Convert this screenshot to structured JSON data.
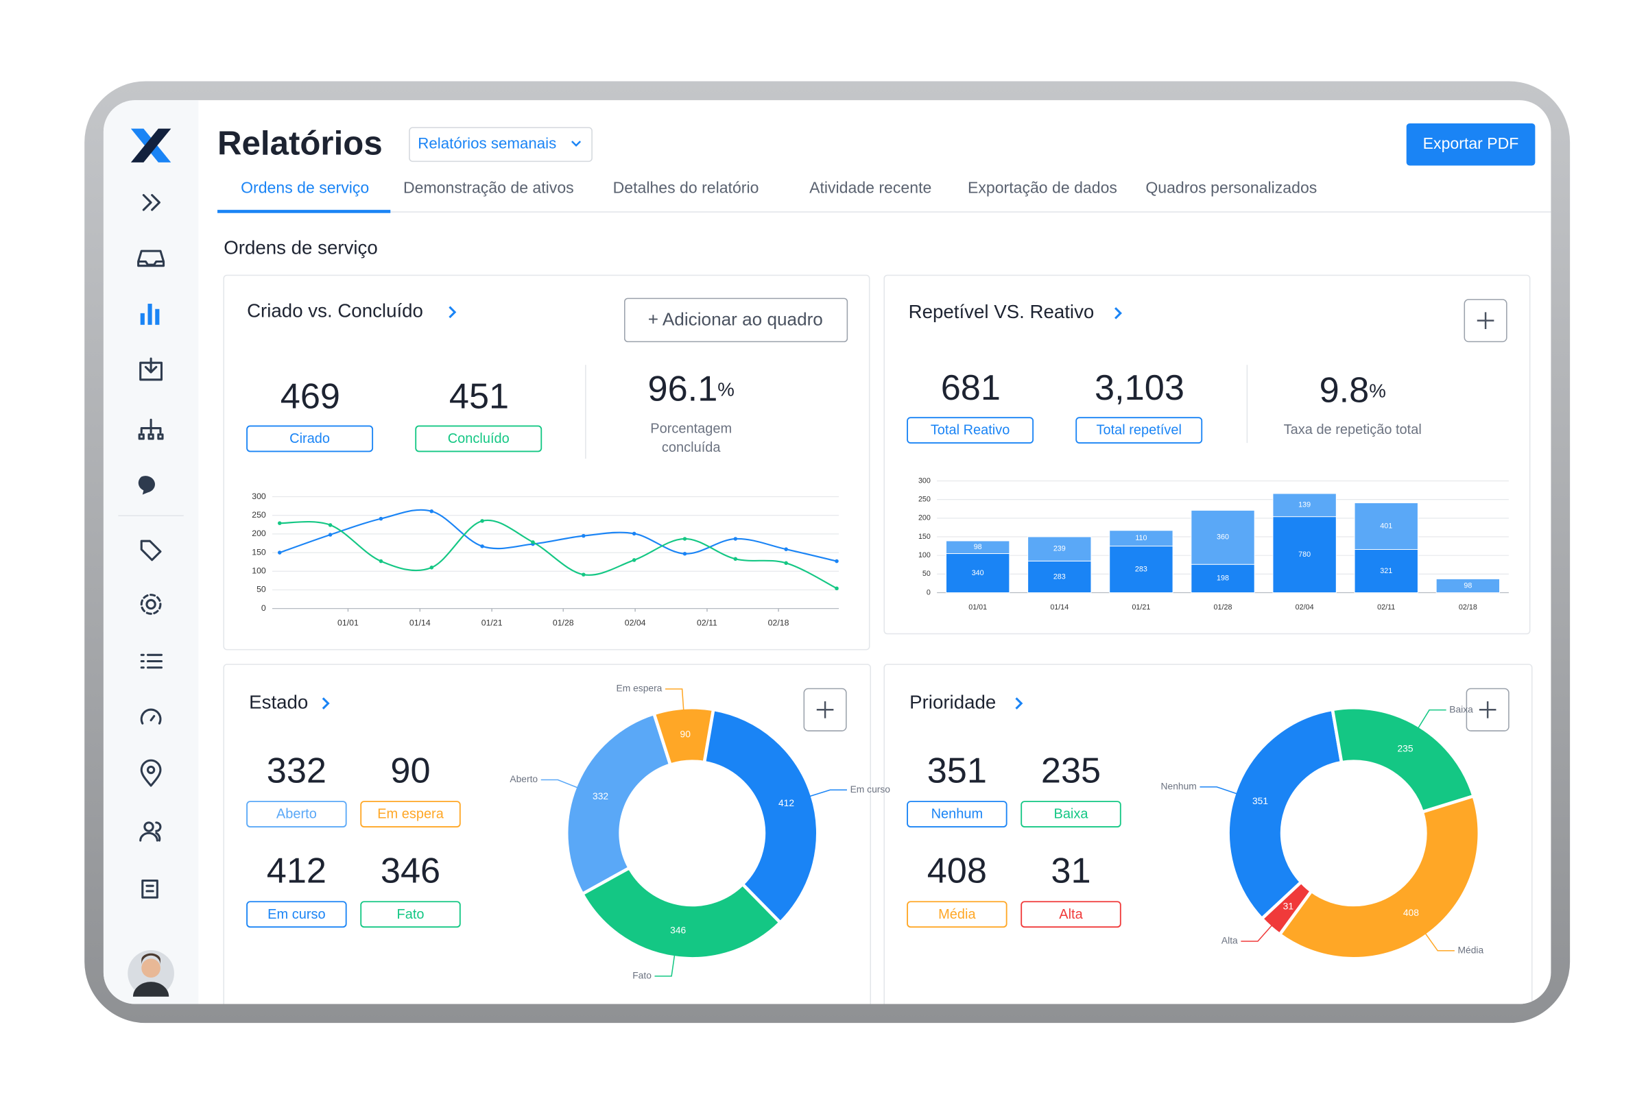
{
  "header": {
    "title": "Relatórios",
    "dropdown": "Relatórios semanais",
    "export_button": "Exportar PDF"
  },
  "tabs": [
    "Ordens de serviço",
    "Demonstração de ativos",
    "Detalhes do relatório",
    "Atividade recente",
    "Exportação de dados",
    "Quadros personalizados"
  ],
  "section_title": "Ordens de serviço",
  "chart_data": [
    {
      "type": "line",
      "title": "Criado vs. Concluído",
      "add_button": "+ Adicionar ao quadro",
      "rate": {
        "value": "96.1",
        "unit": "%",
        "caption": [
          "Porcentagem",
          "concluída"
        ]
      },
      "x": [
        0,
        1,
        2,
        3,
        4,
        5,
        6,
        7,
        8,
        9,
        10,
        11
      ],
      "xlim": [
        0,
        11
      ],
      "xticks": [
        {
          "value": 1.35,
          "label": "01/01"
        },
        {
          "value": 2.77,
          "label": "01/14"
        },
        {
          "value": 4.19,
          "label": "01/21"
        },
        {
          "value": 5.6,
          "label": "01/28"
        },
        {
          "value": 7.02,
          "label": "02/04"
        },
        {
          "value": 8.44,
          "label": "02/11"
        },
        {
          "value": 9.85,
          "label": "02/18"
        }
      ],
      "ylim": [
        0,
        300
      ],
      "yticks": [
        0,
        50,
        100,
        150,
        200,
        250,
        300
      ],
      "grid": true,
      "series": [
        {
          "name": "Cirado",
          "total": "469",
          "color": "#1a84f5",
          "values": [
            150,
            198,
            241,
            261,
            167,
            173,
            195,
            201,
            147,
            187,
            159,
            127
          ]
        },
        {
          "name": "Concluído",
          "total": "451",
          "color": "#14c784",
          "values": [
            229,
            224,
            127,
            110,
            235,
            178,
            91,
            130,
            187,
            133,
            122,
            54
          ]
        }
      ]
    },
    {
      "type": "bar",
      "stacked": true,
      "title": "Repetível VS. Reativo",
      "rate": {
        "value": "9.8",
        "unit": "%",
        "caption": [
          "Taxa de repetição total"
        ]
      },
      "categories": [
        "01/01",
        "01/14",
        "01/21",
        "01/28",
        "02/04",
        "02/11",
        "02/18"
      ],
      "ylim": [
        0,
        300
      ],
      "yticks": [
        0,
        50,
        100,
        150,
        200,
        250,
        300
      ],
      "grid": true,
      "series": [
        {
          "name": "Total Reativo",
          "total": "681",
          "color": "#1a84f5",
          "values": [
            105,
            85,
            125,
            76,
            204,
            116,
            null
          ],
          "annotations": [
            "340",
            "283",
            "283",
            "198",
            "780",
            "321",
            null
          ]
        },
        {
          "name": "Total repetível",
          "total": "3,103",
          "color": "#5aa8f7",
          "values": [
            34,
            65,
            42,
            145,
            62,
            125,
            37
          ],
          "annotations": [
            "98",
            "239",
            "110",
            "360",
            "139",
            "401",
            "98"
          ]
        }
      ]
    },
    {
      "type": "pie",
      "donut": true,
      "title": "Estado",
      "categories": [
        "Aberto",
        "Em espera",
        "Em curso",
        "Fato"
      ],
      "values": [
        332,
        90,
        412,
        346
      ],
      "colors": [
        "#5aa8f7",
        "#ffa726",
        "#1a84f5",
        "#14c784"
      ]
    },
    {
      "type": "pie",
      "donut": true,
      "title": "Prioridade",
      "categories": [
        "Nenhum",
        "Baixa",
        "Média",
        "Alta"
      ],
      "values": [
        351,
        235,
        408,
        31
      ],
      "colors": [
        "#1a84f5",
        "#14c784",
        "#ffa726",
        "#f03a3a"
      ]
    }
  ]
}
